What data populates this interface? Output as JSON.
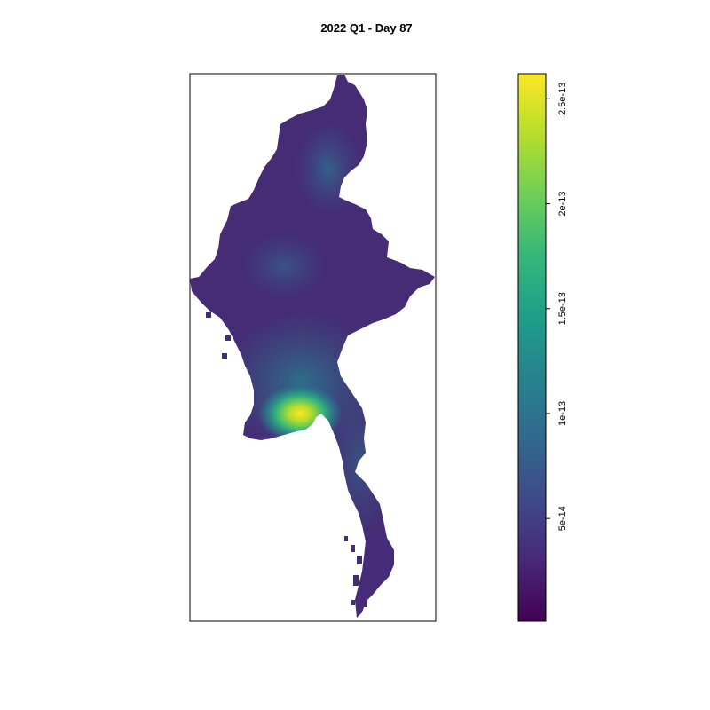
{
  "title": "2022 Q1 - Day 87",
  "map": {
    "region": "Myanmar",
    "layer_kind": "raster"
  },
  "legend": {
    "palette": "viridis",
    "colors": [
      "#440154",
      "#482878",
      "#3e4a89",
      "#31688e",
      "#26828e",
      "#1f9e89",
      "#35b779",
      "#6ece58",
      "#b5de2b",
      "#fde725"
    ],
    "range": [
      1e-15,
      2.62e-13
    ],
    "ticks": [
      {
        "value": 5e-14,
        "label": "5e-14"
      },
      {
        "value": 1e-13,
        "label": "1e-13"
      },
      {
        "value": 1.5e-13,
        "label": "1.5e-13"
      },
      {
        "value": 2e-13,
        "label": "2e-13"
      },
      {
        "value": 2.5e-13,
        "label": "2.5e-13"
      }
    ]
  }
}
